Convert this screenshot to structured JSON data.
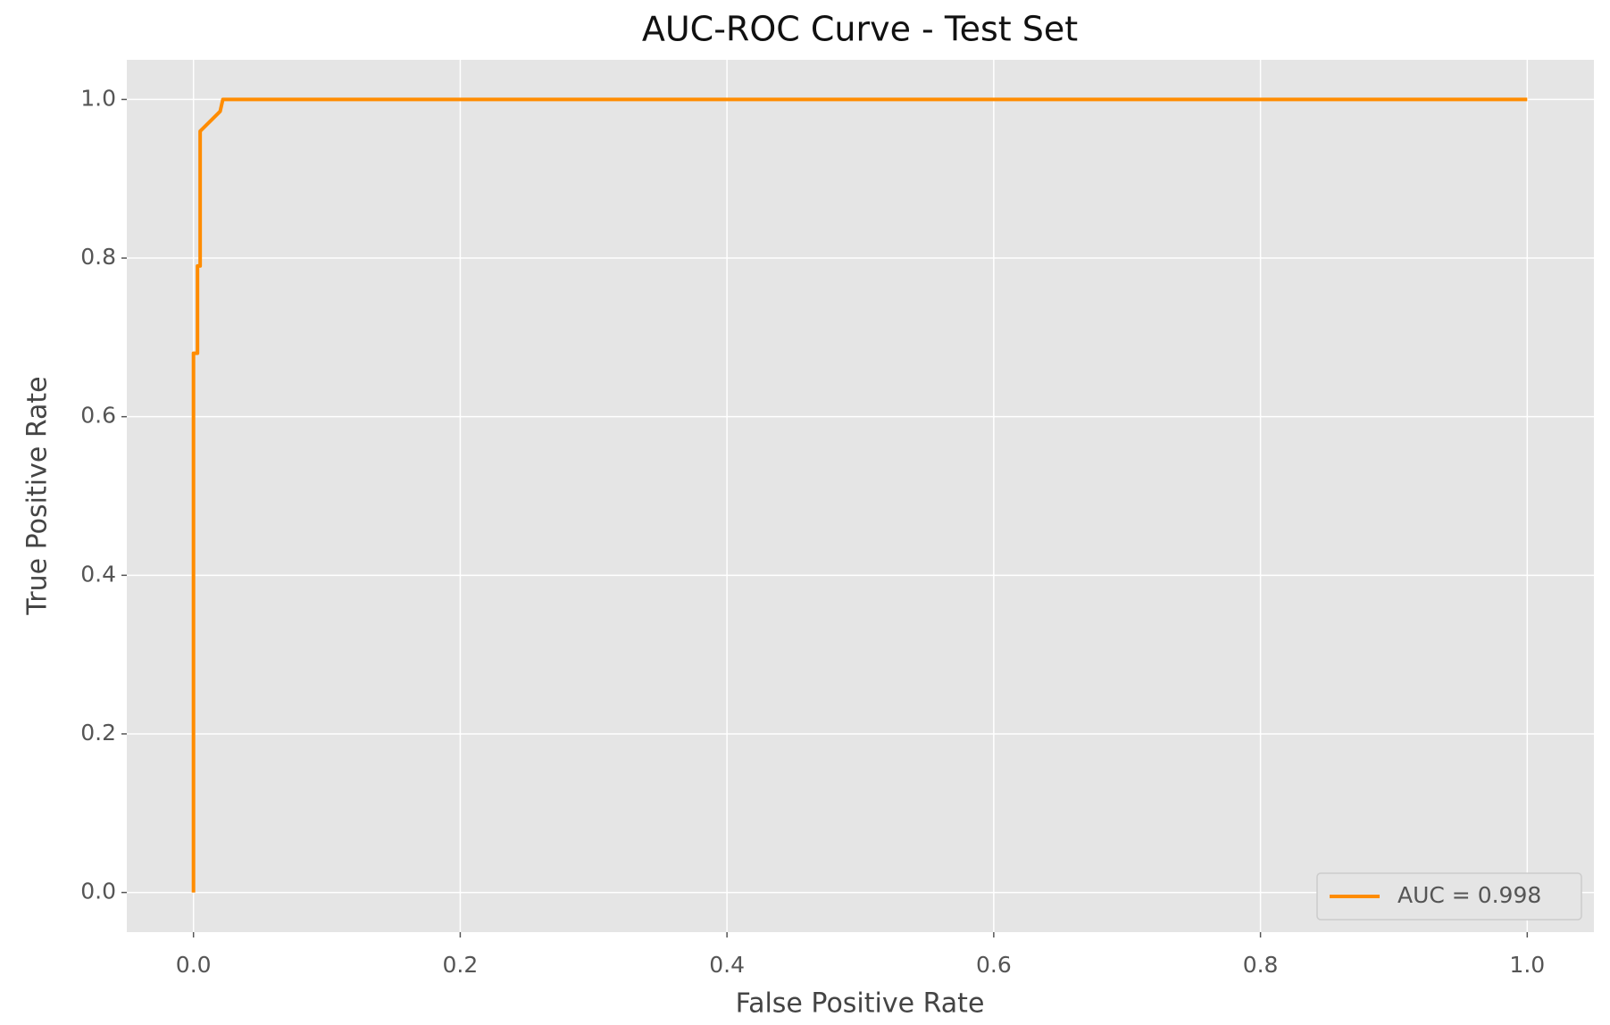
{
  "chart_data": {
    "type": "line",
    "title": "AUC-ROC Curve - Test Set",
    "x_label": "False Positive Rate",
    "y_label": "True Positive Rate",
    "x": [
      0,
      0,
      0.003,
      0.003,
      0.005,
      0.005,
      0.02,
      0.022,
      1
    ],
    "series": [
      {
        "name": "AUC = 0.998",
        "color": "#ff8c00",
        "values": [
          0,
          0.68,
          0.68,
          0.79,
          0.79,
          0.96,
          0.985,
          1,
          1
        ]
      }
    ],
    "xlim": [
      -0.05,
      1.05
    ],
    "ylim": [
      -0.05,
      1.05
    ],
    "xticks": [
      {
        "value": 0,
        "label": "0.0"
      },
      0.2,
      0.4,
      0.6,
      0.8,
      {
        "value": 1,
        "label": "1.0"
      }
    ],
    "yticks": [
      {
        "value": 0,
        "label": "0.0"
      },
      0.2,
      0.4,
      0.6,
      0.8,
      {
        "value": 1,
        "label": "1.0"
      }
    ],
    "grid": true,
    "legend": "lower right"
  }
}
